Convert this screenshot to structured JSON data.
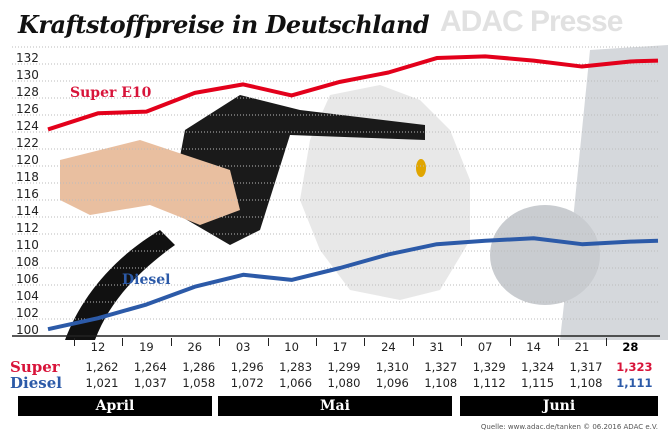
{
  "chart_data": {
    "type": "line",
    "title": "Kraftstoffpreise in Deutschland",
    "x": [
      "",
      "12",
      "19",
      "26",
      "03",
      "10",
      "17",
      "24",
      "31",
      "07",
      "14",
      "21",
      "28"
    ],
    "months": [
      "April",
      "Mai",
      "Juni"
    ],
    "ylim": [
      100,
      134
    ],
    "yticks": [
      100,
      102,
      104,
      106,
      108,
      110,
      112,
      114,
      116,
      118,
      120,
      122,
      124,
      126,
      128,
      130,
      132
    ],
    "grid": true,
    "series": [
      {
        "name": "Super E10",
        "color": "#e3001b",
        "values": [
          124.3,
          126.2,
          126.4,
          128.6,
          129.6,
          128.3,
          129.9,
          131.0,
          132.7,
          132.9,
          132.4,
          131.7,
          132.3
        ]
      },
      {
        "name": "Diesel",
        "color": "#2c5aa8",
        "values": [
          100.8,
          102.1,
          103.7,
          105.8,
          107.2,
          106.6,
          108.0,
          109.6,
          110.8,
          111.2,
          111.5,
          110.8,
          111.1
        ]
      }
    ],
    "table": {
      "super_label": "Super",
      "diesel_label": "Diesel",
      "super": [
        "1,262",
        "1,264",
        "1,286",
        "1,296",
        "1,283",
        "1,299",
        "1,310",
        "1,327",
        "1,329",
        "1,324",
        "1,317",
        "1,323"
      ],
      "diesel": [
        "1,021",
        "1,037",
        "1,058",
        "1,072",
        "1,066",
        "1,080",
        "1,096",
        "1,108",
        "1,112",
        "1,115",
        "1,108",
        "1,111"
      ]
    }
  },
  "source": "Quelle: www.adac.de/tanken  © 06.2016  ADAC e.V.",
  "watermark": "ADAC Presse"
}
